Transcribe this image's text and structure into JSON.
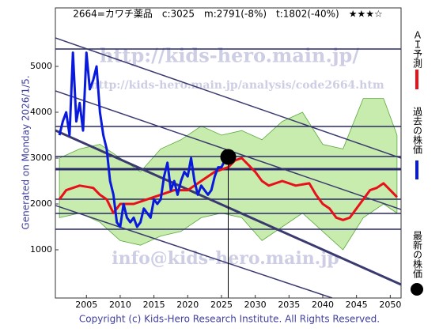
{
  "chart_data": {
    "type": "line",
    "title": "2664=カワチ薬品　c:3025　m:2791(-8%)　t:1802(-40%)　★★★☆",
    "side_label": "Generated on Monday 2026/1/5.",
    "footer": "Copyright (c) Kids-Hero Research Institute. All Rights Reserved.",
    "watermarks": [
      "http://kids-hero.main.jp/",
      "http://kids-hero.main.jp/analysis/code2664.htm",
      "info@kids-hero.main.jp"
    ],
    "xlim": [
      2000.4,
      2051.6
    ],
    "ylim": [
      -52,
      6276
    ],
    "xticks": [
      2005,
      2010,
      2015,
      2020,
      2025,
      2030,
      2035,
      2040,
      2045,
      2050
    ],
    "yticks": [
      1000,
      2000,
      3000,
      4000,
      5000
    ],
    "grid": false,
    "band": {
      "color": "#9bdc6a",
      "x": [
        2001,
        2004,
        2007,
        2010,
        2013,
        2016,
        2019,
        2022,
        2025,
        2028,
        2031,
        2034,
        2037,
        2040,
        2043,
        2046,
        2049,
        2051
      ],
      "upper": [
        3000,
        3200,
        3300,
        3000,
        2700,
        3200,
        3400,
        3700,
        3500,
        3600,
        3400,
        3800,
        4000,
        3300,
        3200,
        4300,
        4300,
        3500
      ],
      "lower": [
        1700,
        1800,
        1600,
        1200,
        1100,
        1300,
        1400,
        1700,
        1800,
        1700,
        1200,
        1500,
        1800,
        1400,
        1000,
        1700,
        2000,
        1800
      ]
    },
    "levels": {
      "color": "#2a2a6a",
      "values": [
        5379,
        3690,
        3034,
        2759,
        2103,
        1793,
        1448
      ]
    },
    "trend_lines": {
      "color": "#3a3a70",
      "lines": [
        [
          [
            2000.4,
            5621
          ],
          [
            2051.6,
            3000
          ]
        ],
        [
          [
            2000.4,
            4466
          ],
          [
            2051.6,
            1879
          ]
        ],
        [
          [
            2000.4,
            3603
          ],
          [
            2051.6,
            241
          ]
        ],
        [
          [
            2000.4,
            1966
          ],
          [
            2041.4,
            -52
          ]
        ]
      ]
    },
    "series": [
      {
        "name": "過去の株価",
        "color": "#0a1adc",
        "x": [
          2001,
          2001.5,
          2002,
          2002.5,
          2003,
          2003.5,
          2004,
          2004.5,
          2005,
          2005.5,
          2006,
          2006.5,
          2007,
          2007.5,
          2008,
          2008.5,
          2009,
          2009.5,
          2010,
          2010.5,
          2011,
          2011.5,
          2012,
          2012.5,
          2013,
          2013.5,
          2014,
          2014.5,
          2015,
          2015.5,
          2016,
          2016.5,
          2017,
          2017.5,
          2018,
          2018.5,
          2019,
          2019.5,
          2020,
          2020.5,
          2021,
          2021.5,
          2022,
          2022.5,
          2023,
          2023.5,
          2024,
          2024.5,
          2025,
          2025.5,
          2026
        ],
        "values": [
          3500,
          3800,
          4000,
          3500,
          5300,
          3800,
          4200,
          3600,
          5300,
          4500,
          4700,
          5000,
          4000,
          3500,
          3200,
          2500,
          2200,
          1600,
          1500,
          2000,
          1700,
          1600,
          1700,
          1500,
          1600,
          1900,
          1800,
          1700,
          2100,
          2000,
          2100,
          2600,
          2900,
          2300,
          2500,
          2200,
          2500,
          2700,
          2600,
          3000,
          2500,
          2200,
          2400,
          2300,
          2200,
          2300,
          2600,
          2800,
          2800,
          2950,
          3025
        ]
      },
      {
        "name": "ＡＩ予測",
        "color": "#e8101a",
        "x": [
          2001,
          2002,
          2004,
          2006,
          2007,
          2008,
          2009,
          2010,
          2012,
          2014,
          2016,
          2018,
          2020,
          2022,
          2024,
          2026,
          2027,
          2028,
          2029,
          2030,
          2031,
          2032,
          2034,
          2036,
          2038,
          2039,
          2040,
          2041,
          2042,
          2043,
          2044,
          2045,
          2046,
          2047,
          2048,
          2049,
          2050,
          2051
        ],
        "values": [
          2100,
          2300,
          2400,
          2350,
          2200,
          2100,
          1800,
          2000,
          2000,
          2100,
          2200,
          2300,
          2300,
          2500,
          2700,
          2800,
          2950,
          3000,
          2850,
          2700,
          2500,
          2400,
          2500,
          2400,
          2450,
          2200,
          2000,
          1900,
          1700,
          1650,
          1700,
          1900,
          2100,
          2300,
          2350,
          2450,
          2300,
          2150
        ]
      }
    ],
    "marker": {
      "name": "最新の株価",
      "color": "#000000",
      "x": 2026,
      "y": 3025
    }
  }
}
